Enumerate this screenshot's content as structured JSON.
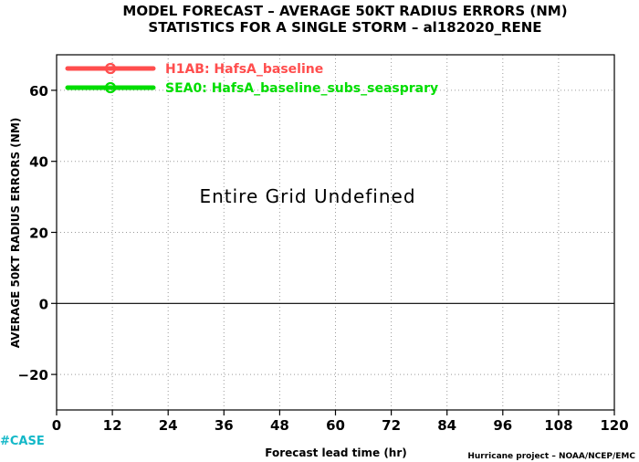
{
  "header": {
    "title_line1": "MODEL FORECAST – AVERAGE 50KT RADIUS ERRORS (NM)",
    "title_line2": "STATISTICS FOR A SINGLE STORM – al182020_RENE"
  },
  "annotations": {
    "undefined_message": "Entire Grid Undefined",
    "case_label": "#CASE",
    "credit": "Hurricane project – NOAA/NCEP/EMC"
  },
  "colors": {
    "series_h1ab": "#ff4d4d",
    "series_sea0": "#00dd00",
    "case_label": "#14b8c8",
    "grid": "#9a9a9a",
    "zero_line": "#000000"
  },
  "chart_data": {
    "type": "line",
    "xlabel": "Forecast lead time (hr)",
    "ylabel": "AVERAGE 50KT RADIUS ERRORS (NM)",
    "xlim": [
      0,
      120
    ],
    "ylim": [
      -30,
      70
    ],
    "x_ticks": [
      0,
      12,
      24,
      36,
      48,
      60,
      72,
      84,
      96,
      108,
      120
    ],
    "y_ticks": [
      -20,
      0,
      20,
      40,
      60
    ],
    "grid": true,
    "legend_position": "top-left",
    "series": [
      {
        "name": "H1AB: HafsA_baseline",
        "color": "#ff4d4d",
        "x": [],
        "y": []
      },
      {
        "name": "SEA0: HafsA_baseline_subs_seasprary",
        "color": "#00dd00",
        "x": [],
        "y": []
      }
    ]
  }
}
